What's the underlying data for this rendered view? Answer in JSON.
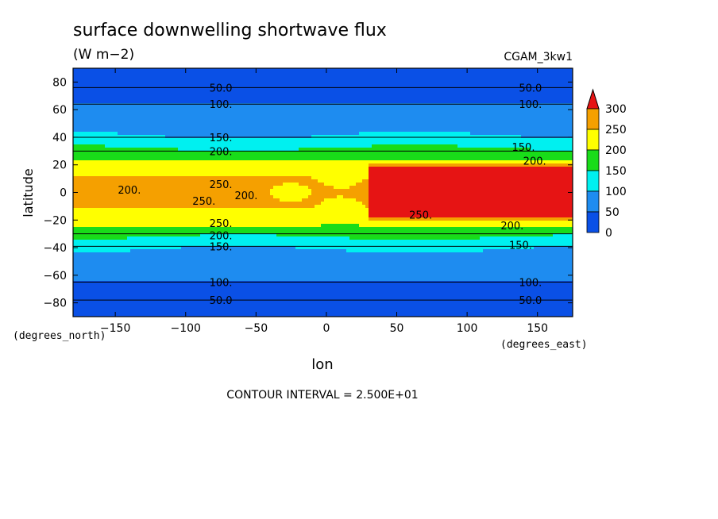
{
  "chart_data": {
    "type": "heatmap",
    "title": "surface downwelling shortwave flux",
    "subtitle": "(W m−2)",
    "dataset": "CGAM_3kw1",
    "xlabel": "lon",
    "x_units": "(degrees_east)",
    "y_units": "(degrees_north)",
    "ylabel": "latitude",
    "xlim": [
      -180,
      175
    ],
    "ylim": [
      -90,
      90
    ],
    "x_ticks": [
      -150,
      -100,
      -50,
      0,
      50,
      100,
      150
    ],
    "x_tick_labels": [
      "−150",
      "−100",
      "−50",
      "0",
      "50",
      "100",
      "150"
    ],
    "y_ticks": [
      80,
      60,
      40,
      20,
      0,
      -20,
      -40,
      -60,
      -80
    ],
    "y_tick_labels": [
      "80",
      "60",
      "40",
      "20",
      "0",
      "−20",
      "−40",
      "−60",
      "−80"
    ],
    "contour_interval_text": "CONTOUR INTERVAL = 2.500E+01",
    "levels": [
      0,
      50,
      100,
      150,
      200,
      250,
      300
    ],
    "colorbar_labels": [
      "300",
      "250",
      "200",
      "150",
      "100",
      "50",
      "0"
    ],
    "colors": {
      "0-50": "#0a50e6",
      "50-100": "#1e8cf0",
      "100-150": "#00f0f0",
      "150-200": "#19dc19",
      "200-250": "#ffff00",
      "250-300": "#f5a000",
      "above": "#e61414"
    },
    "contour_labels": [
      {
        "text": "50.0",
        "lon": -75,
        "lat": 76
      },
      {
        "text": "50.0",
        "lon": 145,
        "lat": 76
      },
      {
        "text": "100.",
        "lon": -75,
        "lat": 64
      },
      {
        "text": "100.",
        "lon": 145,
        "lat": 64
      },
      {
        "text": "150.",
        "lon": -75,
        "lat": 40
      },
      {
        "text": "150.",
        "lon": 140,
        "lat": 33
      },
      {
        "text": "200.",
        "lon": -75,
        "lat": 30
      },
      {
        "text": "200.",
        "lon": 148,
        "lat": 23
      },
      {
        "text": "250.",
        "lon": -75,
        "lat": 6
      },
      {
        "text": "200.",
        "lon": -140,
        "lat": 2
      },
      {
        "text": "200.",
        "lon": -57,
        "lat": -2
      },
      {
        "text": "250.",
        "lon": -87,
        "lat": -6
      },
      {
        "text": "250.",
        "lon": 67,
        "lat": -16
      },
      {
        "text": "250.",
        "lon": -75,
        "lat": -22
      },
      {
        "text": "200.",
        "lon": 132,
        "lat": -24
      },
      {
        "text": "200.",
        "lon": -75,
        "lat": -31
      },
      {
        "text": "150.",
        "lon": -75,
        "lat": -39
      },
      {
        "text": "150.",
        "lon": 138,
        "lat": -38
      },
      {
        "text": "100.",
        "lon": -75,
        "lat": -65
      },
      {
        "text": "100.",
        "lon": 145,
        "lat": -65
      },
      {
        "text": "50.0",
        "lon": -75,
        "lat": -78
      },
      {
        "text": "50.0",
        "lon": 145,
        "lat": -78
      }
    ]
  }
}
